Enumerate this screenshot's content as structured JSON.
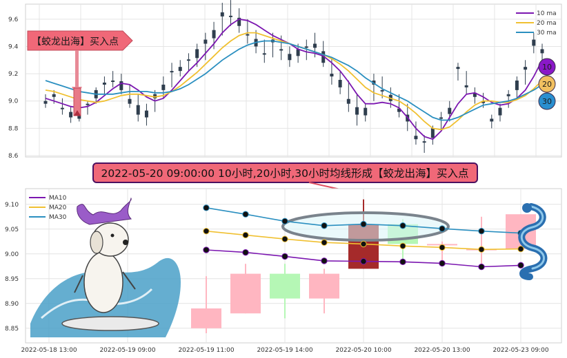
{
  "chart_data": [
    {
      "type": "line",
      "legend": [
        "10 ma",
        "20 ma",
        "30 ma"
      ],
      "badges": [
        "10",
        "20",
        "30"
      ],
      "ylim": [
        8.6,
        9.7
      ],
      "y_ticks": [
        "9.6",
        "9.4",
        "9.2",
        "9.0",
        "8.8",
        "8.6"
      ],
      "y_tick_values": [
        9.6,
        9.4,
        9.2,
        9.0,
        8.8,
        8.6
      ],
      "signal_label": "【蛟龙出海】买入点",
      "candles_hlc": [
        [
          9.05,
          8.95,
          9.0
        ],
        [
          9.08,
          8.98,
          9.03
        ],
        [
          9.02,
          8.9,
          8.95
        ],
        [
          8.96,
          8.84,
          8.88
        ],
        [
          8.93,
          8.85,
          8.9
        ],
        [
          9.0,
          8.9,
          8.98
        ],
        [
          9.1,
          8.98,
          9.08
        ],
        [
          9.18,
          9.05,
          9.12
        ],
        [
          9.22,
          9.1,
          9.15
        ],
        [
          9.2,
          9.05,
          9.08
        ],
        [
          9.12,
          8.95,
          8.98
        ],
        [
          9.05,
          8.85,
          8.9
        ],
        [
          8.98,
          8.82,
          8.93
        ],
        [
          9.08,
          8.92,
          9.05
        ],
        [
          9.18,
          9.02,
          9.12
        ],
        [
          9.28,
          9.1,
          9.22
        ],
        [
          9.3,
          9.18,
          9.25
        ],
        [
          9.35,
          9.22,
          9.3
        ],
        [
          9.42,
          9.25,
          9.38
        ],
        [
          9.5,
          9.3,
          9.45
        ],
        [
          9.58,
          9.38,
          9.52
        ],
        [
          9.72,
          9.48,
          9.65
        ],
        [
          9.74,
          9.55,
          9.62
        ],
        [
          9.68,
          9.5,
          9.55
        ],
        [
          9.6,
          9.42,
          9.48
        ],
        [
          9.52,
          9.35,
          9.4
        ],
        [
          9.45,
          9.28,
          9.35
        ],
        [
          9.5,
          9.32,
          9.45
        ],
        [
          9.48,
          9.3,
          9.38
        ],
        [
          9.4,
          9.25,
          9.3
        ],
        [
          9.42,
          9.28,
          9.38
        ],
        [
          9.45,
          9.3,
          9.4
        ],
        [
          9.5,
          9.32,
          9.42
        ],
        [
          9.44,
          9.25,
          9.28
        ],
        [
          9.32,
          9.12,
          9.18
        ],
        [
          9.22,
          9.05,
          9.1
        ],
        [
          9.15,
          8.92,
          8.98
        ],
        [
          9.05,
          8.82,
          8.9
        ],
        [
          8.98,
          8.85,
          8.95
        ],
        [
          9.2,
          9.0,
          9.15
        ],
        [
          9.18,
          9.02,
          9.08
        ],
        [
          9.1,
          8.95,
          9.0
        ],
        [
          9.05,
          8.88,
          8.92
        ],
        [
          8.98,
          8.78,
          8.85
        ],
        [
          8.85,
          8.68,
          8.72
        ],
        [
          8.75,
          8.62,
          8.7
        ],
        [
          8.82,
          8.68,
          8.8
        ],
        [
          8.92,
          8.78,
          8.88
        ],
        [
          9.0,
          8.85,
          8.95
        ],
        [
          9.28,
          9.15,
          9.25
        ],
        [
          9.22,
          9.05,
          9.1
        ],
        [
          9.1,
          8.98,
          9.03
        ],
        [
          9.06,
          8.95,
          9.0
        ],
        [
          8.9,
          8.8,
          8.85
        ],
        [
          8.98,
          8.85,
          8.95
        ],
        [
          9.08,
          8.95,
          9.05
        ],
        [
          9.18,
          9.02,
          9.15
        ],
        [
          9.3,
          9.12,
          9.25
        ],
        [
          9.5,
          9.35,
          9.45
        ],
        [
          9.42,
          9.3,
          9.35
        ]
      ],
      "series": [
        {
          "name": "10 ma",
          "color": "#7b16b0",
          "values": [
            9.02,
            9.0,
            8.98,
            8.96,
            8.95,
            8.96,
            8.99,
            9.04,
            9.09,
            9.13,
            9.12,
            9.08,
            9.03,
            9.0,
            9.02,
            9.08,
            9.15,
            9.22,
            9.28,
            9.35,
            9.42,
            9.5,
            9.56,
            9.6,
            9.59,
            9.56,
            9.52,
            9.48,
            9.45,
            9.42,
            9.38,
            9.36,
            9.35,
            9.33,
            9.28,
            9.22,
            9.14,
            9.05,
            8.98,
            8.98,
            8.99,
            8.98,
            8.95,
            8.88,
            8.8,
            8.74,
            8.72,
            8.78,
            8.88,
            8.98,
            9.05,
            9.06,
            9.03,
            8.99,
            8.97,
            8.98,
            9.02,
            9.08,
            9.18,
            9.3
          ]
        },
        {
          "name": "20 ma",
          "color": "#f0c030",
          "values": [
            9.08,
            9.07,
            9.05,
            9.03,
            9.01,
            9.0,
            8.99,
            9.0,
            9.02,
            9.04,
            9.05,
            9.05,
            9.04,
            9.03,
            9.04,
            9.07,
            9.11,
            9.16,
            9.21,
            9.27,
            9.33,
            9.39,
            9.44,
            9.48,
            9.5,
            9.5,
            9.48,
            9.46,
            9.44,
            9.42,
            9.4,
            9.38,
            9.36,
            9.34,
            9.31,
            9.27,
            9.22,
            9.16,
            9.1,
            9.06,
            9.04,
            9.02,
            9.0,
            8.96,
            8.91,
            8.85,
            8.8,
            8.79,
            8.81,
            8.86,
            8.92,
            8.97,
            9.0,
            9.0,
            8.99,
            8.99,
            9.01,
            9.04,
            9.09,
            9.15
          ]
        },
        {
          "name": "30 ma",
          "color": "#2a8fc0",
          "values": [
            9.15,
            9.13,
            9.11,
            9.09,
            9.07,
            9.06,
            9.05,
            9.05,
            9.05,
            9.06,
            9.07,
            9.07,
            9.07,
            9.06,
            9.06,
            9.07,
            9.09,
            9.12,
            9.16,
            9.2,
            9.25,
            9.3,
            9.34,
            9.38,
            9.41,
            9.43,
            9.44,
            9.44,
            9.43,
            9.42,
            9.4,
            9.38,
            9.36,
            9.34,
            9.32,
            9.29,
            9.26,
            9.22,
            9.17,
            9.13,
            9.09,
            9.06,
            9.03,
            9.0,
            8.96,
            8.92,
            8.88,
            8.86,
            8.86,
            8.88,
            8.91,
            8.94,
            8.97,
            8.98,
            8.99,
            9.0,
            9.02,
            9.05,
            9.08,
            9.12
          ]
        }
      ]
    },
    {
      "type": "bar",
      "legend": [
        "MA10",
        "MA20",
        "MA30"
      ],
      "ylim": [
        8.84,
        9.115
      ],
      "y_ticks": [
        "9.10",
        "9.05",
        "9.00",
        "8.95",
        "8.90",
        "8.85"
      ],
      "y_tick_values": [
        9.1,
        9.05,
        9.0,
        8.95,
        8.9,
        8.85
      ],
      "x_ticks": [
        "2022-05-18 13:00",
        "2022-05-19 09:00",
        "2022-05-19 11:00",
        "2022-05-19 14:00",
        "2022-05-20 10:00",
        "2022-05-20 13:00",
        "2022-05-23 09:00"
      ],
      "x_tick_slots": [
        0,
        2,
        4,
        6,
        8,
        10,
        12
      ],
      "candles": [
        {
          "slot": 4,
          "open": 8.85,
          "close": 8.89,
          "high": 8.955,
          "low": 8.84,
          "color": "#ffb6c1"
        },
        {
          "slot": 5,
          "open": 8.88,
          "close": 8.96,
          "high": 8.98,
          "low": 8.88,
          "color": "#ffb6c1"
        },
        {
          "slot": 6,
          "open": 8.91,
          "close": 8.96,
          "high": 8.98,
          "low": 8.87,
          "color": "#b5f7b5"
        },
        {
          "slot": 7,
          "open": 8.91,
          "close": 8.96,
          "high": 8.97,
          "low": 8.88,
          "color": "#ffb6c1"
        },
        {
          "slot": 8,
          "open": 8.97,
          "close": 9.06,
          "high": 9.11,
          "low": 8.97,
          "color": "#a52a2a"
        },
        {
          "slot": 9,
          "open": 9.06,
          "close": 9.02,
          "high": 9.07,
          "low": 8.98,
          "color": "#b5f7b5"
        },
        {
          "slot": 10,
          "open": 9.02,
          "close": 9.02,
          "high": 9.025,
          "low": 8.975,
          "color": "#ffb6c1"
        },
        {
          "slot": 11,
          "open": 9.01,
          "close": 9.01,
          "high": 9.075,
          "low": 8.97,
          "color": "#ffb6c1"
        },
        {
          "slot": 12,
          "open": 9.01,
          "close": 9.08,
          "high": 9.08,
          "low": 9.01,
          "color": "#ffb6c1"
        }
      ],
      "ma_series": [
        {
          "name": "MA10",
          "color": "#7b16b0",
          "slots": [
            4,
            5,
            6,
            7,
            8,
            9,
            10,
            11,
            12
          ],
          "values": [
            9.008,
            9.003,
            8.995,
            8.986,
            8.985,
            8.984,
            8.981,
            8.974,
            8.977
          ]
        },
        {
          "name": "MA20",
          "color": "#f0c030",
          "slots": [
            4,
            5,
            6,
            7,
            8,
            9,
            10,
            11,
            12
          ],
          "values": [
            9.046,
            9.038,
            9.03,
            9.023,
            9.02,
            9.016,
            9.013,
            9.009,
            9.01
          ]
        },
        {
          "name": "MA30",
          "color": "#2a8fc0",
          "slots": [
            4,
            5,
            6,
            7,
            8,
            9,
            10,
            11,
            12
          ],
          "values": [
            9.093,
            9.08,
            9.066,
            9.057,
            9.06,
            9.057,
            9.051,
            9.046,
            9.042
          ]
        }
      ],
      "banner": "2022-05-20 09:00:00 10小时,20小时,30小时均线形成【蛟龙出海】买入点"
    }
  ],
  "colors": {
    "ma10": "#7b16b0",
    "ma20": "#f0c030",
    "ma30": "#2a8fc0",
    "candle_dark": "#2f3e4e",
    "banner_fill": "#f06878",
    "banner_border": "#4a1060",
    "highlight_ring": "#7a838c",
    "arrow": "#e05060"
  },
  "decorations": [
    "dragon-dog-surfer-image",
    "blue-dragon-image"
  ]
}
